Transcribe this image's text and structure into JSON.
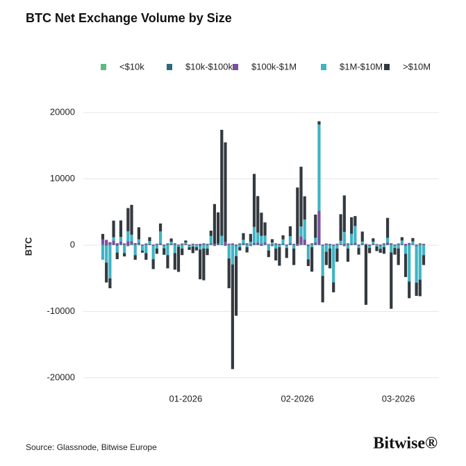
{
  "chart_data": {
    "type": "bar",
    "stacked": true,
    "title": "BTC Net Exchange Volume by Size",
    "ylabel": "BTC",
    "categories": [
      null,
      null,
      null,
      null,
      null,
      null,
      null,
      null,
      null,
      null,
      null,
      null,
      null,
      null,
      null,
      null,
      null,
      null,
      null,
      null,
      null,
      null,
      null,
      "01-2026",
      null,
      null,
      null,
      null,
      null,
      null,
      null,
      null,
      null,
      null,
      null,
      null,
      null,
      null,
      null,
      null,
      null,
      null,
      null,
      null,
      null,
      null,
      null,
      null,
      null,
      null,
      null,
      null,
      null,
      null,
      "02-2026",
      null,
      null,
      null,
      null,
      null,
      null,
      null,
      null,
      null,
      null,
      null,
      null,
      null,
      null,
      null,
      null,
      null,
      null,
      null,
      null,
      null,
      null,
      null,
      null,
      null,
      null,
      null,
      "03-2026",
      null,
      null,
      null,
      null,
      null,
      null,
      null
    ],
    "series": [
      {
        "name": "<$10k",
        "color": "#5dbb80",
        "values": [
          40,
          -30,
          30,
          20,
          -20,
          30,
          10,
          -30,
          40,
          20,
          40,
          -30,
          30,
          20,
          -20,
          30,
          10,
          -30,
          40,
          20,
          40,
          -30,
          30,
          20,
          -20,
          30,
          10,
          -30,
          40,
          20,
          40,
          -30,
          30,
          20,
          -20,
          30,
          10,
          -30,
          40,
          20,
          40,
          -30,
          30,
          20,
          -20,
          30,
          10,
          -30,
          40,
          20,
          40,
          -30,
          30,
          20,
          -20,
          30,
          10,
          -30,
          40,
          20,
          40,
          -30,
          30,
          20,
          -20,
          30,
          10,
          -30,
          40,
          20,
          40,
          -30,
          30,
          20,
          -20,
          30,
          10,
          -30,
          40,
          20,
          40,
          -30,
          30,
          20,
          -20,
          30,
          10,
          -30,
          40,
          20
        ]
      },
      {
        "name": "$10k-$100k",
        "color": "#2b6b7c",
        "values": [
          150,
          -100,
          120,
          80,
          -90,
          100,
          60,
          -120,
          140,
          90,
          150,
          -100,
          120,
          80,
          -90,
          100,
          60,
          -120,
          140,
          90,
          150,
          -100,
          120,
          80,
          -90,
          100,
          60,
          -120,
          140,
          90,
          150,
          -100,
          120,
          80,
          -90,
          100,
          60,
          -120,
          140,
          90,
          150,
          -100,
          120,
          80,
          -90,
          100,
          60,
          -120,
          140,
          90,
          150,
          -100,
          120,
          80,
          -90,
          100,
          60,
          -120,
          140,
          90,
          150,
          -100,
          120,
          80,
          -90,
          100,
          60,
          -120,
          140,
          90,
          150,
          -100,
          120,
          80,
          -90,
          100,
          60,
          -120,
          140,
          90,
          150,
          -100,
          120,
          80,
          -90,
          100,
          60,
          -120,
          140,
          90
        ]
      },
      {
        "name": "$100k-$1M",
        "color": "#7a4f9f",
        "values": [
          700,
          800,
          300,
          600,
          300,
          400,
          200,
          600,
          400,
          200,
          200,
          100,
          100,
          100,
          100,
          100,
          200,
          100,
          100,
          100,
          100,
          100,
          100,
          100,
          100,
          100,
          100,
          200,
          100,
          100,
          100,
          200,
          100,
          0,
          500,
          100,
          200,
          100,
          100,
          200,
          100,
          100,
          200,
          300,
          200,
          300,
          100,
          100,
          100,
          100,
          100,
          100,
          200,
          100,
          200,
          1200,
          800,
          100,
          100,
          300,
          5000,
          100,
          100,
          100,
          100,
          100,
          100,
          200,
          100,
          100,
          200,
          100,
          100,
          100,
          100,
          100,
          100,
          100,
          100,
          300,
          100,
          100,
          100,
          100,
          200,
          200,
          100,
          100,
          100,
          100
        ]
      },
      {
        "name": "$1M-$10M",
        "color": "#3fb4c5",
        "values": [
          -2200,
          -2500,
          -5000,
          500,
          -1000,
          700,
          -1200,
          1500,
          1000,
          -1500,
          500,
          -700,
          -1200,
          400,
          -2000,
          -500,
          1800,
          -300,
          -1500,
          300,
          -1200,
          -100,
          -500,
          200,
          -200,
          -200,
          -300,
          -500,
          -500,
          -500,
          1100,
          0,
          0,
          1300,
          0,
          -2000,
          -2900,
          -1500,
          -300,
          500,
          -300,
          400,
          2400,
          1500,
          1200,
          1000,
          -800,
          300,
          -500,
          -300,
          600,
          -300,
          1000,
          -500,
          0,
          1500,
          3000,
          -2000,
          -300,
          700,
          13000,
          -4500,
          -1000,
          -500,
          -5500,
          -500,
          500,
          1800,
          -500,
          1500,
          2500,
          -300,
          300,
          0,
          -300,
          300,
          -200,
          -400,
          -300,
          700,
          -1100,
          -300,
          -500,
          500,
          -1200,
          -5500,
          400,
          -5500,
          -5200,
          -1500
        ]
      },
      {
        "name": ">$10M",
        "color": "#33393f",
        "values": [
          800,
          -3000,
          -1500,
          2500,
          -1000,
          2500,
          -500,
          3500,
          4500,
          -700,
          1800,
          -300,
          -1000,
          600,
          -1500,
          -800,
          1200,
          -1000,
          -2000,
          500,
          -2500,
          -3800,
          -1000,
          300,
          -400,
          -1000,
          -500,
          -4500,
          -4800,
          -1000,
          800,
          6000,
          4700,
          16000,
          15000,
          -4500,
          -15800,
          -9000,
          -500,
          1000,
          -800,
          1200,
          8000,
          5500,
          3500,
          2000,
          -1000,
          500,
          -1800,
          -2800,
          600,
          -1500,
          1500,
          -2500,
          8500,
          9000,
          3500,
          -1000,
          -3700,
          3500,
          500,
          -4000,
          -2000,
          -3000,
          -1500,
          -2000,
          4000,
          5500,
          -2000,
          2500,
          1500,
          -1000,
          1500,
          -9000,
          -800,
          500,
          -700,
          -600,
          -1000,
          3000,
          -8500,
          -1000,
          -2500,
          500,
          -3500,
          -2500,
          500,
          -2000,
          -2500,
          -1500
        ]
      }
    ],
    "ylim": [
      -22000,
      22000
    ],
    "yticks": [
      -20000,
      -10000,
      0,
      10000,
      20000
    ],
    "grid": true
  },
  "footer": {
    "source": "Source: Glassnode, Bitwise Europe",
    "brand": "Bitwise®"
  }
}
